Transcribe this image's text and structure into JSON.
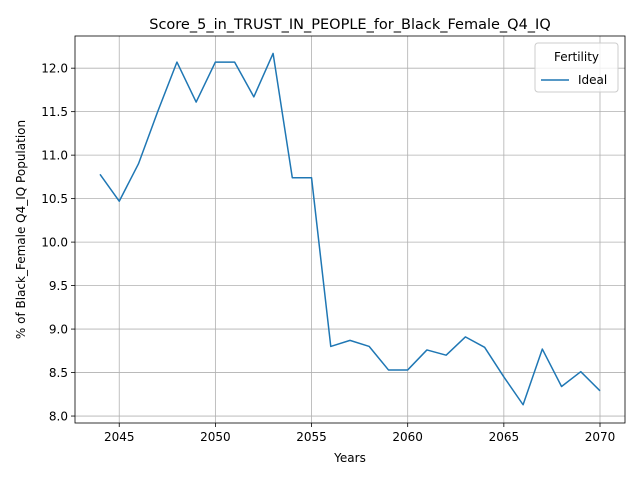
{
  "chart_data": {
    "type": "line",
    "title": "Score_5_in_TRUST_IN_PEOPLE_for_Black_Female_Q4_IQ",
    "xlabel": "Years",
    "ylabel": "% of Black_Female Q4_IQ Population",
    "xlim": [
      2042.7,
      2071.3
    ],
    "ylim": [
      7.92,
      12.37
    ],
    "xticks": [
      2045,
      2050,
      2055,
      2060,
      2065,
      2070
    ],
    "yticks": [
      8.0,
      8.5,
      9.0,
      9.5,
      10.0,
      10.5,
      11.0,
      11.5,
      12.0
    ],
    "xtick_labels": [
      "2045",
      "2050",
      "2055",
      "2060",
      "2065",
      "2070"
    ],
    "ytick_labels": [
      "8.0",
      "8.5",
      "9.0",
      "9.5",
      "10.0",
      "10.5",
      "11.0",
      "11.5",
      "12.0"
    ],
    "grid": true,
    "legend": {
      "title": "Fertility",
      "placement": "top-right"
    },
    "series": [
      {
        "name": "Ideal",
        "color": "#1f77b4",
        "x": [
          2044,
          2045,
          2046,
          2047,
          2048,
          2049,
          2050,
          2051,
          2052,
          2053,
          2054,
          2055,
          2056,
          2057,
          2058,
          2059,
          2060,
          2061,
          2062,
          2063,
          2064,
          2065,
          2066,
          2067,
          2068,
          2069,
          2070
        ],
        "y": [
          10.78,
          10.47,
          10.9,
          11.5,
          12.07,
          11.61,
          12.07,
          12.07,
          11.67,
          12.17,
          10.74,
          10.74,
          8.8,
          8.87,
          8.8,
          8.53,
          8.53,
          8.76,
          8.7,
          8.91,
          8.79,
          8.45,
          8.13,
          8.77,
          8.34,
          8.51,
          8.29
        ]
      }
    ]
  }
}
